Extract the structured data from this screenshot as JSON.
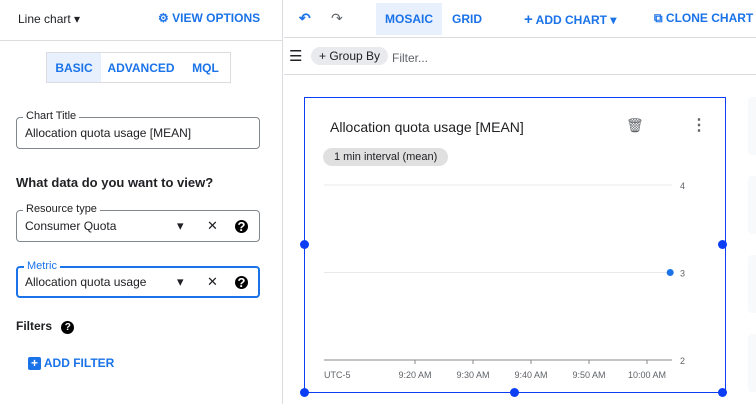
{
  "left_panel": {
    "chart_type": "Line chart",
    "view_options": "VIEW OPTIONS",
    "tabs": [
      {
        "label": "BASIC",
        "active": true
      },
      {
        "label": "ADVANCED",
        "active": false
      },
      {
        "label": "MQL",
        "active": false
      }
    ],
    "chart_title": {
      "label": "Chart Title",
      "value": "Allocation quota usage [MEAN]"
    },
    "question": "What data do you want to view?",
    "resource_type": {
      "label": "Resource type",
      "value": "Consumer Quota"
    },
    "metric": {
      "label": "Metric",
      "value": "Allocation quota usage"
    },
    "filters_label": "Filters",
    "add_filter": "ADD FILTER"
  },
  "toolbar": {
    "mosaic": "MOSAIC",
    "grid": "GRID",
    "add_chart": "ADD CHART",
    "clone_chart": "CLONE CHART"
  },
  "filter_bar": {
    "group_by": "+ Group By",
    "placeholder": "Filter..."
  },
  "colors": {
    "accent": "#1a73e8",
    "selection": "#0b3ef5"
  },
  "chart_data": {
    "type": "line",
    "title": "Allocation quota usage [MEAN]",
    "chip": "1 min interval (mean)",
    "timezone": "UTC-5",
    "x_ticks": [
      "9:20 AM",
      "9:30 AM",
      "9:40 AM",
      "9:50 AM",
      "10:00 AM"
    ],
    "y_ticks": [
      4,
      3,
      2
    ],
    "ylim": [
      2,
      4
    ],
    "grid": true,
    "series": [
      {
        "points": [
          {
            "x": "10:04 AM",
            "y": 3
          }
        ]
      }
    ]
  }
}
